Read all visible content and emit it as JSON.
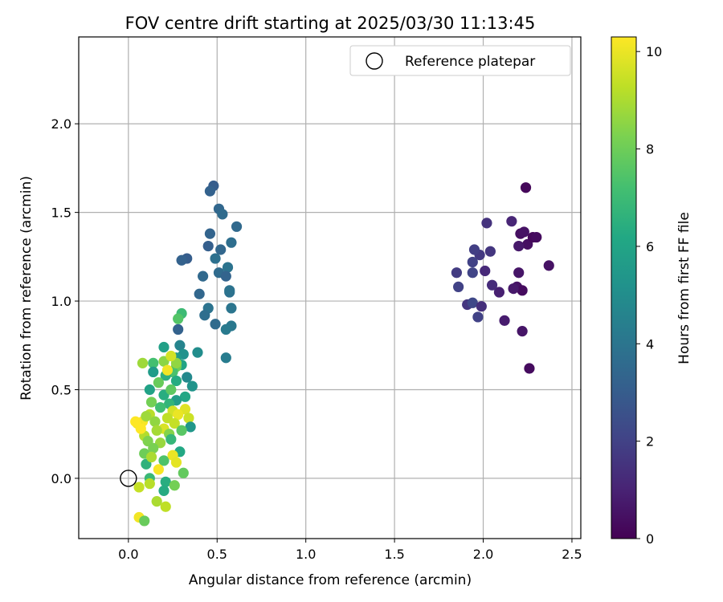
{
  "chart_data": {
    "type": "scatter",
    "title": "FOV centre drift starting at 2025/03/30 11:13:45",
    "xlabel": "Angular distance from reference (arcmin)",
    "ylabel": "Rotation from reference (arcmin)",
    "xlim": [
      -0.28,
      2.55
    ],
    "ylim": [
      -0.34,
      2.49
    ],
    "xticks": [
      0.0,
      0.5,
      1.0,
      1.5,
      2.0,
      2.5
    ],
    "xtick_labels": [
      "0.0",
      "0.5",
      "1.0",
      "1.5",
      "2.0",
      "2.5"
    ],
    "yticks": [
      0.0,
      0.5,
      1.0,
      1.5,
      2.0
    ],
    "ytick_labels": [
      "0.0",
      "0.5",
      "1.0",
      "1.5",
      "2.0"
    ],
    "grid": true,
    "legend": {
      "placement": "top-right",
      "entries": [
        "Reference platepar"
      ]
    },
    "reference_point": {
      "x": 0.0,
      "y": 0.0,
      "name": "Reference platepar"
    },
    "colorbar": {
      "label": "Hours from first FF file",
      "min": 0,
      "max": 10.3,
      "ticks": [
        0,
        2,
        4,
        6,
        8,
        10
      ],
      "tick_labels": [
        "0",
        "2",
        "4",
        "6",
        "8",
        "10"
      ],
      "colormap": "viridis"
    },
    "points": [
      [
        2.24,
        1.64,
        0.2
      ],
      [
        2.21,
        1.38,
        0.4
      ],
      [
        2.26,
        0.62,
        0.3
      ],
      [
        2.19,
        1.08,
        0.5
      ],
      [
        2.22,
        1.06,
        0.3
      ],
      [
        2.2,
        1.16,
        0.6
      ],
      [
        2.17,
        1.07,
        0.7
      ],
      [
        2.25,
        1.32,
        0.4
      ],
      [
        2.28,
        1.36,
        0.2
      ],
      [
        2.3,
        1.36,
        0.3
      ],
      [
        2.37,
        1.2,
        0.5
      ],
      [
        2.22,
        0.83,
        0.6
      ],
      [
        2.12,
        0.89,
        0.8
      ],
      [
        2.09,
        1.05,
        0.9
      ],
      [
        2.2,
        1.31,
        0.7
      ],
      [
        2.23,
        1.39,
        0.5
      ],
      [
        2.05,
        1.09,
        1.3
      ],
      [
        2.04,
        1.28,
        1.6
      ],
      [
        2.01,
        1.17,
        1.2
      ],
      [
        2.02,
        1.44,
        1.5
      ],
      [
        2.16,
        1.45,
        1.1
      ],
      [
        1.98,
        1.26,
        1.7
      ],
      [
        1.95,
        1.29,
        1.9
      ],
      [
        1.94,
        1.22,
        2.0
      ],
      [
        1.94,
        1.16,
        2.1
      ],
      [
        1.85,
        1.16,
        1.8
      ],
      [
        1.86,
        1.08,
        2.0
      ],
      [
        1.91,
        0.98,
        1.6
      ],
      [
        1.94,
        0.99,
        2.2
      ],
      [
        1.97,
        0.91,
        2.0
      ],
      [
        1.99,
        0.97,
        1.4
      ],
      [
        0.48,
        1.65,
        3.0
      ],
      [
        0.46,
        1.62,
        3.2
      ],
      [
        0.51,
        1.52,
        3.4
      ],
      [
        0.53,
        1.49,
        3.6
      ],
      [
        0.61,
        1.42,
        3.5
      ],
      [
        0.46,
        1.38,
        3.3
      ],
      [
        0.58,
        1.33,
        3.7
      ],
      [
        0.45,
        1.31,
        3.1
      ],
      [
        0.52,
        1.29,
        3.4
      ],
      [
        0.33,
        1.24,
        3.0
      ],
      [
        0.3,
        1.23,
        3.2
      ],
      [
        0.49,
        1.24,
        3.8
      ],
      [
        0.56,
        1.19,
        3.9
      ],
      [
        0.51,
        1.16,
        3.6
      ],
      [
        0.42,
        1.14,
        3.5
      ],
      [
        0.55,
        1.14,
        3.3
      ],
      [
        0.57,
        1.05,
        3.8
      ],
      [
        0.57,
        1.06,
        3.9
      ],
      [
        0.4,
        1.04,
        3.4
      ],
      [
        0.45,
        0.96,
        3.9
      ],
      [
        0.58,
        0.96,
        4.0
      ],
      [
        0.43,
        0.92,
        3.7
      ],
      [
        0.49,
        0.87,
        3.6
      ],
      [
        0.58,
        0.86,
        4.1
      ],
      [
        0.55,
        0.84,
        4.2
      ],
      [
        0.28,
        0.84,
        3.2
      ],
      [
        0.55,
        0.68,
        4.3
      ],
      [
        0.3,
        0.93,
        7.0
      ],
      [
        0.28,
        0.9,
        7.5
      ],
      [
        0.39,
        0.71,
        5.0
      ],
      [
        0.29,
        0.75,
        4.6
      ],
      [
        0.31,
        0.7,
        5.2
      ],
      [
        0.2,
        0.74,
        5.8
      ],
      [
        0.27,
        0.68,
        5.5
      ],
      [
        0.33,
        0.57,
        4.8
      ],
      [
        0.36,
        0.52,
        5.3
      ],
      [
        0.3,
        0.64,
        6.0
      ],
      [
        0.27,
        0.63,
        8.0
      ],
      [
        0.25,
        0.6,
        7.3
      ],
      [
        0.2,
        0.66,
        8.5
      ],
      [
        0.14,
        0.65,
        7.2
      ],
      [
        0.08,
        0.65,
        8.8
      ],
      [
        0.14,
        0.6,
        5.6
      ],
      [
        0.21,
        0.58,
        6.5
      ],
      [
        0.27,
        0.55,
        6.3
      ],
      [
        0.17,
        0.54,
        7.9
      ],
      [
        0.12,
        0.5,
        5.9
      ],
      [
        0.2,
        0.47,
        6.4
      ],
      [
        0.24,
        0.5,
        7.7
      ],
      [
        0.32,
        0.46,
        6.1
      ],
      [
        0.27,
        0.44,
        5.7
      ],
      [
        0.23,
        0.42,
        6.7
      ],
      [
        0.13,
        0.43,
        8.1
      ],
      [
        0.18,
        0.4,
        7.1
      ],
      [
        0.25,
        0.38,
        9.6
      ],
      [
        0.32,
        0.39,
        9.8
      ],
      [
        0.34,
        0.34,
        9.5
      ],
      [
        0.28,
        0.36,
        10.0
      ],
      [
        0.35,
        0.29,
        5.4
      ],
      [
        0.22,
        0.34,
        9.3
      ],
      [
        0.12,
        0.36,
        9.2
      ],
      [
        0.15,
        0.32,
        8.6
      ],
      [
        0.08,
        0.32,
        10.2
      ],
      [
        0.05,
        0.31,
        10.1
      ],
      [
        0.2,
        0.28,
        9.7
      ],
      [
        0.26,
        0.31,
        9.4
      ],
      [
        0.3,
        0.27,
        7.6
      ],
      [
        0.23,
        0.25,
        8.4
      ],
      [
        0.16,
        0.27,
        8.9
      ],
      [
        0.09,
        0.24,
        9.1
      ],
      [
        0.07,
        0.28,
        10.3
      ],
      [
        0.11,
        0.21,
        8.3
      ],
      [
        0.18,
        0.2,
        8.7
      ],
      [
        0.24,
        0.22,
        6.8
      ],
      [
        0.29,
        0.15,
        6.2
      ],
      [
        0.14,
        0.17,
        8.2
      ],
      [
        0.09,
        0.14,
        8.0
      ],
      [
        0.1,
        0.08,
        6.6
      ],
      [
        0.13,
        0.12,
        9.0
      ],
      [
        0.2,
        0.1,
        7.4
      ],
      [
        0.25,
        0.13,
        10.0
      ],
      [
        0.27,
        0.09,
        9.9
      ],
      [
        0.17,
        0.05,
        10.2
      ],
      [
        0.12,
        0.0,
        6.9
      ],
      [
        0.21,
        -0.02,
        6.4
      ],
      [
        0.26,
        -0.04,
        8.1
      ],
      [
        0.31,
        0.03,
        7.8
      ],
      [
        0.12,
        -0.03,
        9.2
      ],
      [
        0.06,
        -0.05,
        9.4
      ],
      [
        0.2,
        -0.07,
        6.3
      ],
      [
        0.16,
        -0.13,
        9.0
      ],
      [
        0.21,
        -0.16,
        9.3
      ],
      [
        0.06,
        -0.22,
        10.1
      ],
      [
        0.09,
        -0.24,
        7.9
      ],
      [
        0.1,
        0.35,
        8.8
      ],
      [
        0.04,
        0.32,
        10.3
      ],
      [
        0.27,
        0.65,
        8.6
      ],
      [
        0.22,
        0.61,
        10.1
      ],
      [
        0.24,
        0.69,
        9.6
      ]
    ]
  }
}
